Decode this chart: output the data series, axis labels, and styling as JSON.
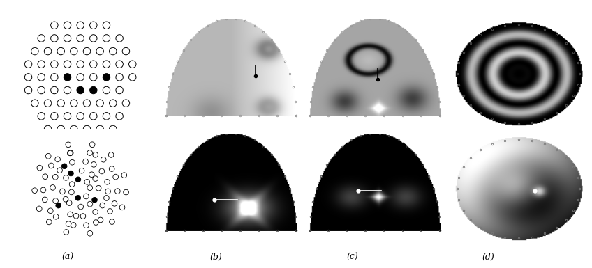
{
  "figure_width": 8.48,
  "figure_height": 3.85,
  "dpi": 100,
  "bg_color": "#ffffff",
  "labels": [
    "(a)",
    "(b)",
    "(c)",
    "(d)"
  ],
  "label_fontsize": 9,
  "label_style": "italic"
}
